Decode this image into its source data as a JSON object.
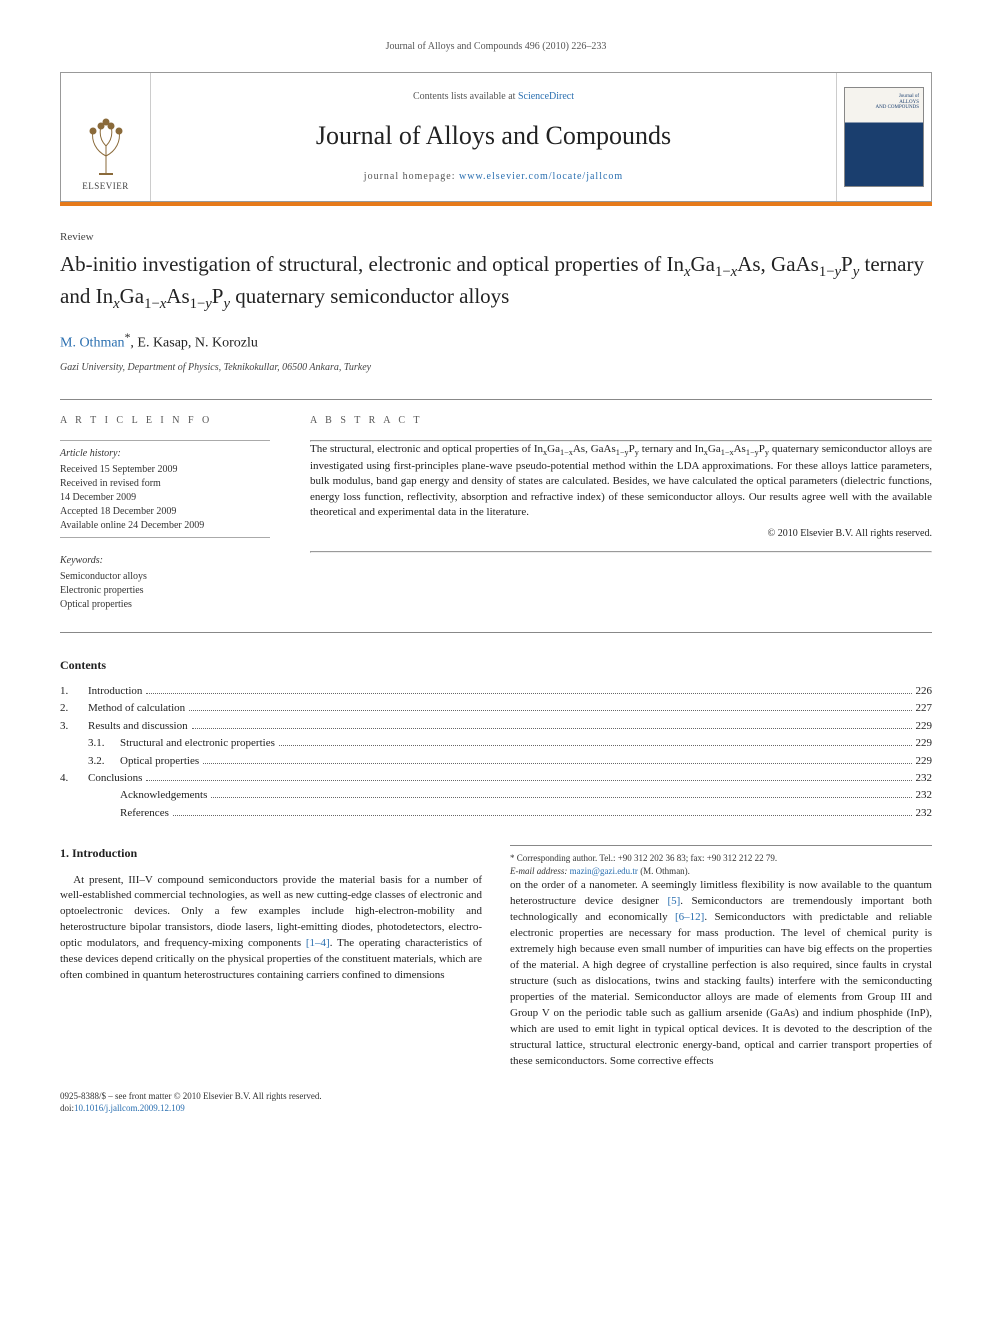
{
  "running_head": "Journal of Alloys and Compounds 496 (2010) 226–233",
  "banner": {
    "contents_prefix": "Contents lists available at ",
    "contents_link": "ScienceDirect",
    "journal": "Journal of Alloys and Compounds",
    "homepage_prefix": "journal homepage: ",
    "homepage_url": "www.elsevier.com/locate/jallcom",
    "publisher": "ELSEVIER",
    "cover_label_top": "Journal of",
    "cover_label_mid": "ALLOYS",
    "cover_label_bot": "AND COMPOUNDS"
  },
  "style": {
    "banner_orange": "#e67a1a",
    "link_color": "#2a6fb0",
    "cover_blue": "#1a3e6e"
  },
  "article": {
    "type": "Review",
    "title_html": "Ab-initio investigation of structural, electronic and optical properties of In<sub><span class='it'>x</span></sub>Ga<sub>1−<span class='it'>x</span></sub>As, GaAs<sub>1−<span class='it'>y</span></sub>P<sub><span class='it'>y</span></sub> ternary and In<sub><span class='it'>x</span></sub>Ga<sub>1−<span class='it'>x</span></sub>As<sub>1−<span class='it'>y</span></sub>P<sub><span class='it'>y</span></sub> quaternary semiconductor alloys",
    "authors_html": "<a href='#'>M. Othman</a><sup>*</sup>, E. Kasap, N. Korozlu",
    "affiliation": "Gazi University, Department of Physics, Teknikokullar, 06500 Ankara, Turkey"
  },
  "info": {
    "head_left": "A R T I C L E   I N F O",
    "head_right": "A B S T R A C T",
    "history_label": "Article history:",
    "history": [
      "Received 15 September 2009",
      "Received in revised form",
      "14 December 2009",
      "Accepted 18 December 2009",
      "Available online 24 December 2009"
    ],
    "keywords_label": "Keywords:",
    "keywords": [
      "Semiconductor alloys",
      "Electronic properties",
      "Optical properties"
    ],
    "abstract_html": "The structural, electronic and optical properties of In<sub>x</sub>Ga<sub>1−x</sub>As, GaAs<sub>1−y</sub>P<sub>y</sub> ternary and In<sub>x</sub>Ga<sub>1−x</sub>As<sub>1−y</sub>P<sub>y</sub> quaternary semiconductor alloys are investigated using first-principles plane-wave pseudo-potential method within the LDA approximations. For these alloys lattice parameters, bulk modulus, band gap energy and density of states are calculated. Besides, we have calculated the optical parameters (dielectric functions, energy loss function, reflectivity, absorption and refractive index) of these semiconductor alloys. Our results agree well with the available theoretical and experimental data in the literature.",
    "copyright": "© 2010 Elsevier B.V. All rights reserved."
  },
  "contents": {
    "head": "Contents",
    "items": [
      {
        "num": "1.",
        "label": "Introduction",
        "page": "226",
        "indent": false
      },
      {
        "num": "2.",
        "label": "Method of calculation",
        "page": "227",
        "indent": false
      },
      {
        "num": "3.",
        "label": "Results and discussion",
        "page": "229",
        "indent": false
      },
      {
        "num": "3.1.",
        "label": "Structural and electronic properties",
        "page": "229",
        "indent": true
      },
      {
        "num": "3.2.",
        "label": "Optical properties",
        "page": "229",
        "indent": true
      },
      {
        "num": "4.",
        "label": "Conclusions",
        "page": "232",
        "indent": false
      },
      {
        "num": "",
        "label": "Acknowledgements",
        "page": "232",
        "indent": true
      },
      {
        "num": "",
        "label": "References",
        "page": "232",
        "indent": true
      }
    ]
  },
  "body": {
    "section_num": "1.",
    "section_title": "Introduction",
    "para1_html": "At present, III–V compound semiconductors provide the material basis for a number of well-established commercial technologies, as well as new cutting-edge classes of electronic and optoelectronic devices. Only a few examples include high-electron-mobility and heterostructure bipolar transistors, diode lasers, light-emitting diodes, photodetectors, electro-optic modulators, and frequency-mixing components <a href='#'>[1–4]</a>. The operating characteristics of these devices depend critically on the physical properties of the constituent materials, which are often combined in quantum heterostructures containing carriers confined to dimensions",
    "para2_html": "on the order of a nanometer. A seemingly limitless flexibility is now available to the quantum heterostructure device designer <a href='#'>[5]</a>. Semiconductors are tremendously important both technologically and economically <a href='#'>[6–12]</a>. Semiconductors with predictable and reliable electronic properties are necessary for mass production. The level of chemical purity is extremely high because even small number of impurities can have big effects on the properties of the material. A high degree of crystalline perfection is also required, since faults in crystal structure (such as dislocations, twins and stacking faults) interfere with the semiconducting properties of the material. Semiconductor alloys are made of elements from Group III and Group V on the periodic table such as gallium arsenide (GaAs) and indium phosphide (InP), which are used to emit light in typical optical devices. It is devoted to the description of the structural lattice, structural electronic energy-band, optical and carrier transport properties of these semiconductors. Some corrective effects"
  },
  "footnote": {
    "corr_html": "* Corresponding author. Tel.: +90 312 202 36 83; fax: +90 312 212 22 79.",
    "email_label": "E-mail address:",
    "email": "mazin@gazi.edu.tr",
    "email_who": "(M. Othman)."
  },
  "footer": {
    "line1": "0925-8388/$ – see front matter © 2010 Elsevier B.V. All rights reserved.",
    "doi_prefix": "doi:",
    "doi": "10.1016/j.jallcom.2009.12.109"
  }
}
